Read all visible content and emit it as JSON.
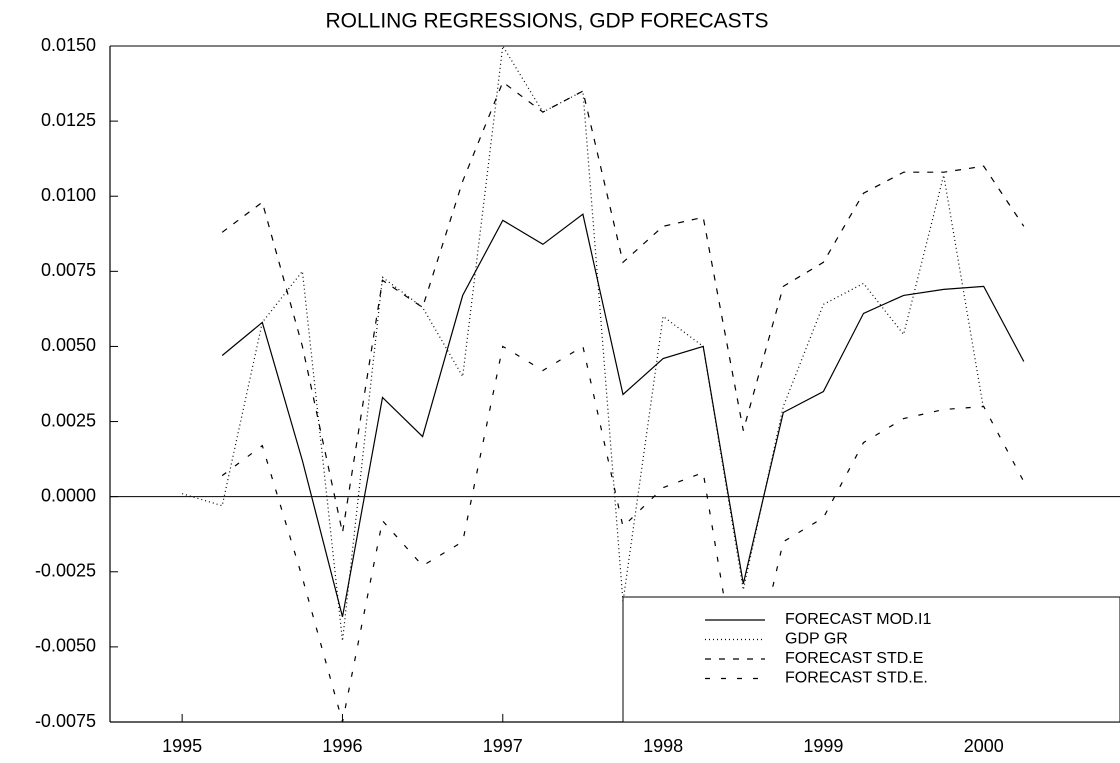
{
  "chart_data": {
    "type": "line",
    "title": "ROLLING REGRESSIONS, GDP FORECASTS",
    "xlim": [
      1994.55,
      2000.85
    ],
    "xticks": [
      1995,
      1996,
      1997,
      1998,
      1999,
      2000
    ],
    "ylim": [
      -0.0075,
      0.015
    ],
    "yticks": [
      {
        "value": -0.0075,
        "label": "-0.0075"
      },
      {
        "value": -0.005,
        "label": "-0.0050"
      },
      {
        "value": -0.0025,
        "label": "-0.0025"
      },
      {
        "value": 0,
        "label": "0.0000"
      },
      {
        "value": 0.0025,
        "label": "0.0025"
      },
      {
        "value": 0.005,
        "label": "0.0050"
      },
      {
        "value": 0.0075,
        "label": "0.0075"
      },
      {
        "value": 0.01,
        "label": "0.0100"
      },
      {
        "value": 0.0125,
        "label": "0.0125"
      },
      {
        "value": 0.015,
        "label": "0.0150"
      }
    ],
    "legend": "lower right",
    "series": [
      {
        "name": "FORECAST MOD.I1",
        "color": "#000000",
        "dash": "none",
        "x": [
          1995.25,
          1995.5,
          1995.75,
          1996.0,
          1996.25,
          1996.5,
          1996.75,
          1997.0,
          1997.25,
          1997.5,
          1997.75,
          1998.0,
          1998.25,
          1998.5,
          1998.75,
          1999.0,
          1999.25,
          1999.5,
          1999.75,
          2000.0,
          2000.25
        ],
        "values": [
          0.0047,
          0.0058,
          0.0012,
          -0.004,
          0.0033,
          0.002,
          0.0067,
          0.0092,
          0.0084,
          0.0094,
          0.0034,
          0.0046,
          0.005,
          -0.0029,
          0.0028,
          0.0035,
          0.0061,
          0.0067,
          0.0069,
          0.007,
          0.0045
        ]
      },
      {
        "name": "GDP GR",
        "color": "#000000",
        "dash": "1 3",
        "x": [
          1995.0,
          1995.25,
          1995.5,
          1995.75,
          1996.0,
          1996.25,
          1996.5,
          1996.75,
          1997.0,
          1997.25,
          1997.5,
          1997.75,
          1998.0,
          1998.25,
          1998.5,
          1998.75,
          1999.0,
          1999.25,
          1999.5,
          1999.75,
          2000.0
        ],
        "values": [
          0.0001,
          -0.0003,
          0.0058,
          0.0075,
          -0.0048,
          0.0073,
          0.0063,
          0.004,
          0.015,
          0.0128,
          0.0135,
          -0.0035,
          0.006,
          0.005,
          -0.0031,
          0.003,
          0.0064,
          0.0071,
          0.0054,
          0.0107,
          0.0029
        ]
      },
      {
        "name": "FORECAST STD.E",
        "color": "#000000",
        "dash": "6 8",
        "x": [
          1995.25,
          1995.5,
          1995.75,
          1996.0,
          1996.25,
          1996.5,
          1996.75,
          1997.0,
          1997.25,
          1997.5,
          1997.75,
          1998.0,
          1998.25,
          1998.5,
          1998.75,
          1999.0,
          1999.25,
          1999.5,
          1999.75,
          2000.0,
          2000.25
        ],
        "values": [
          0.0088,
          0.0098,
          0.005,
          -0.0012,
          0.0072,
          0.0063,
          0.0105,
          0.0138,
          0.0128,
          0.0135,
          0.0078,
          0.009,
          0.0093,
          0.0022,
          0.007,
          0.0078,
          0.0101,
          0.0108,
          0.0108,
          0.011,
          0.009
        ]
      },
      {
        "name": "FORECAST STD.E.",
        "color": "#000000",
        "dash": "5 11",
        "x": [
          1995.25,
          1995.5,
          1995.75,
          1996.0,
          1996.25,
          1996.5,
          1996.75,
          1997.0,
          1997.25,
          1997.5,
          1997.75,
          1998.0,
          1998.25,
          1998.5,
          1998.75,
          1999.0,
          1999.25,
          1999.5,
          1999.75,
          2000.0,
          2000.25
        ],
        "values": [
          0.0007,
          0.0017,
          -0.0027,
          -0.0075,
          -0.0008,
          -0.0023,
          -0.0015,
          0.005,
          0.0042,
          0.005,
          -0.001,
          0.0003,
          0.0008,
          -0.0072,
          -0.0015,
          -0.0007,
          0.0018,
          0.0026,
          0.0029,
          0.003,
          0.0005
        ]
      }
    ]
  }
}
